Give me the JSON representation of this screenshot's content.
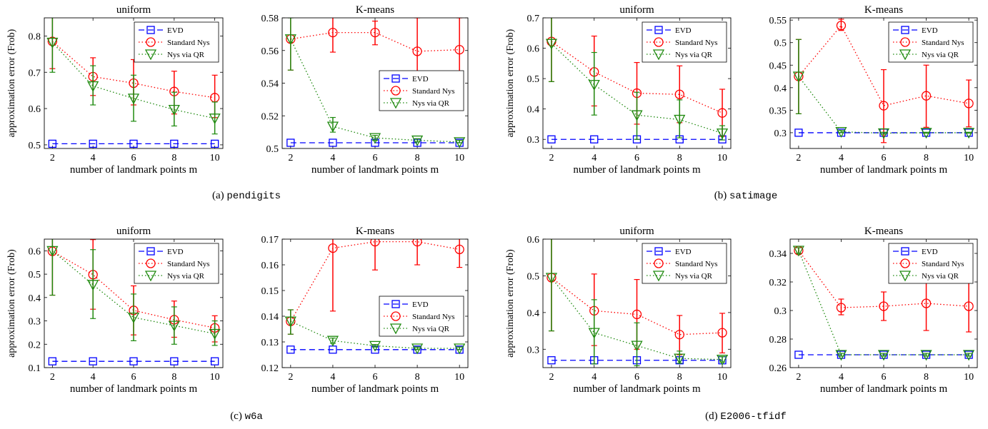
{
  "captions": [
    {
      "label": "(a)",
      "name": "pendigits"
    },
    {
      "label": "(b)",
      "name": "satimage"
    },
    {
      "label": "(c)",
      "name": "w6a"
    },
    {
      "label": "(d)",
      "name": "E2006-tfidf"
    }
  ],
  "legend_labels": [
    "EVD",
    "Standard Nys",
    "Nys via QR"
  ],
  "colors": {
    "evd": "#0000ff",
    "standard": "#ff0000",
    "qr": "#1f8a0f"
  },
  "chart_data": [
    {
      "id": "pendigits-uniform",
      "type": "line",
      "title": "uniform",
      "xlabel": "number of landmark points m",
      "ylabel": "approximation error (Frob)",
      "x": [
        2,
        4,
        6,
        8,
        10
      ],
      "xlim": [
        1.6,
        10.4
      ],
      "ylim": [
        0.49,
        0.85
      ],
      "xticks": [
        2,
        4,
        6,
        8,
        10
      ],
      "yticks": [
        0.5,
        0.6,
        0.7,
        0.8
      ],
      "ytick_labels": [
        "0.5",
        "0.6",
        "0.7",
        "0.8"
      ],
      "legend": "top-right",
      "series": [
        {
          "name": "EVD",
          "values": [
            0.503,
            0.503,
            0.503,
            0.503,
            0.503
          ]
        },
        {
          "name": "Standard Nys",
          "values": [
            0.785,
            0.688,
            0.67,
            0.647,
            0.63
          ],
          "err_low": [
            0.71,
            0.636,
            0.61,
            0.585,
            0.575
          ],
          "err_high": [
            0.86,
            0.74,
            0.735,
            0.703,
            0.692
          ]
        },
        {
          "name": "Nys via QR",
          "values": [
            0.782,
            0.662,
            0.628,
            0.597,
            0.573
          ],
          "err_low": [
            0.7,
            0.61,
            0.565,
            0.552,
            0.53
          ],
          "err_high": [
            0.86,
            0.718,
            0.692,
            0.645,
            0.618
          ]
        }
      ]
    },
    {
      "id": "pendigits-kmeans",
      "type": "line",
      "title": "K-means",
      "xlabel": "number of landmark points m",
      "ylabel": "",
      "x": [
        2,
        4,
        6,
        8,
        10
      ],
      "xlim": [
        1.6,
        10.4
      ],
      "ylim": [
        0.5,
        0.58
      ],
      "xticks": [
        2,
        4,
        6,
        8,
        10
      ],
      "yticks": [
        0.5,
        0.52,
        0.54,
        0.56,
        0.58
      ],
      "ytick_labels": [
        "0.5",
        "0.52",
        "0.54",
        "0.56",
        "0.58"
      ],
      "legend": "center-right",
      "series": [
        {
          "name": "EVD",
          "values": [
            0.5035,
            0.5035,
            0.5035,
            0.5035,
            0.5035
          ]
        },
        {
          "name": "Standard Nys",
          "values": [
            0.567,
            0.571,
            0.571,
            0.5595,
            0.5605
          ],
          "err_low": [
            0.548,
            0.559,
            0.5635,
            0.54,
            0.538
          ],
          "err_high": [
            0.59,
            0.582,
            0.578,
            0.58,
            0.58
          ]
        },
        {
          "name": "Nys via QR",
          "values": [
            0.567,
            0.5135,
            0.5065,
            0.505,
            0.504
          ],
          "err_low": [
            0.548,
            0.51,
            0.505,
            0.504,
            0.5035
          ],
          "err_high": [
            0.58,
            0.519,
            0.508,
            0.506,
            0.505
          ]
        }
      ]
    },
    {
      "id": "satimage-uniform",
      "type": "line",
      "title": "uniform",
      "xlabel": "number of landmark points m",
      "ylabel": "approximation error (Frob)",
      "x": [
        2,
        4,
        6,
        8,
        10
      ],
      "xlim": [
        1.6,
        10.4
      ],
      "ylim": [
        0.27,
        0.7
      ],
      "xticks": [
        2,
        4,
        6,
        8,
        10
      ],
      "yticks": [
        0.3,
        0.4,
        0.5,
        0.6,
        0.7
      ],
      "ytick_labels": [
        "0.3",
        "0.4",
        "0.5",
        "0.6",
        "0.7"
      ],
      "legend": "top-right",
      "series": [
        {
          "name": "EVD",
          "values": [
            0.3,
            0.3,
            0.3,
            0.3,
            0.3
          ]
        },
        {
          "name": "Standard Nys",
          "values": [
            0.622,
            0.522,
            0.452,
            0.448,
            0.387
          ],
          "err_low": [
            0.49,
            0.41,
            0.35,
            0.355,
            0.31
          ],
          "err_high": [
            0.75,
            0.64,
            0.553,
            0.542,
            0.465
          ]
        },
        {
          "name": "Nys via QR",
          "values": [
            0.615,
            0.48,
            0.38,
            0.365,
            0.32
          ],
          "err_low": [
            0.49,
            0.38,
            0.3,
            0.305,
            0.298
          ],
          "err_high": [
            0.75,
            0.586,
            0.455,
            0.43,
            0.345
          ]
        }
      ]
    },
    {
      "id": "satimage-kmeans",
      "type": "line",
      "title": "K-means",
      "xlabel": "number of landmark points m",
      "ylabel": "",
      "x": [
        2,
        4,
        6,
        8,
        10
      ],
      "xlim": [
        1.6,
        10.4
      ],
      "ylim": [
        0.265,
        0.555
      ],
      "xticks": [
        2,
        4,
        6,
        8,
        10
      ],
      "yticks": [
        0.3,
        0.35,
        0.4,
        0.45,
        0.5,
        0.55
      ],
      "ytick_labels": [
        "0.3",
        "0.35",
        "0.4",
        "0.45",
        "0.5",
        "0.55"
      ],
      "legend": "top-right",
      "series": [
        {
          "name": "EVD",
          "values": [
            0.3,
            0.3,
            0.3,
            0.3,
            0.3
          ]
        },
        {
          "name": "Standard Nys",
          "values": [
            0.425,
            0.538,
            0.36,
            0.382,
            0.365
          ],
          "err_low": [
            0.342,
            0.527,
            0.278,
            0.312,
            0.313
          ],
          "err_high": [
            0.507,
            0.552,
            0.44,
            0.45,
            0.417
          ]
        },
        {
          "name": "Nys via QR",
          "values": [
            0.425,
            0.302,
            0.299,
            0.3,
            0.3
          ],
          "err_low": [
            0.342,
            0.3,
            0.297,
            0.299,
            0.299
          ],
          "err_high": [
            0.507,
            0.305,
            0.301,
            0.301,
            0.301
          ]
        }
      ]
    },
    {
      "id": "w6a-uniform",
      "type": "line",
      "title": "uniform",
      "xlabel": "number of landmark points m",
      "ylabel": "approximation error (Frob)",
      "x": [
        2,
        4,
        6,
        8,
        10
      ],
      "xlim": [
        1.6,
        10.4
      ],
      "ylim": [
        0.1,
        0.65
      ],
      "xticks": [
        2,
        4,
        6,
        8,
        10
      ],
      "yticks": [
        0.1,
        0.2,
        0.3,
        0.4,
        0.5,
        0.6
      ],
      "ytick_labels": [
        "0.1",
        "0.2",
        "0.3",
        "0.4",
        "0.5",
        "0.6"
      ],
      "legend": "top-right",
      "series": [
        {
          "name": "EVD",
          "values": [
            0.127,
            0.127,
            0.127,
            0.127,
            0.127
          ]
        },
        {
          "name": "Standard Nys",
          "values": [
            0.598,
            0.498,
            0.345,
            0.305,
            0.27
          ],
          "err_low": [
            0.41,
            0.35,
            0.24,
            0.23,
            0.21
          ],
          "err_high": [
            0.78,
            0.648,
            0.45,
            0.385,
            0.322
          ]
        },
        {
          "name": "Nys via QR",
          "values": [
            0.6,
            0.455,
            0.315,
            0.28,
            0.245
          ],
          "err_low": [
            0.41,
            0.31,
            0.215,
            0.2,
            0.195
          ],
          "err_high": [
            0.78,
            0.605,
            0.415,
            0.36,
            0.3
          ]
        }
      ]
    },
    {
      "id": "w6a-kmeans",
      "type": "line",
      "title": "K-means",
      "xlabel": "number of landmark points m",
      "ylabel": "",
      "x": [
        2,
        4,
        6,
        8,
        10
      ],
      "xlim": [
        1.6,
        10.4
      ],
      "ylim": [
        0.12,
        0.17
      ],
      "xticks": [
        2,
        4,
        6,
        8,
        10
      ],
      "yticks": [
        0.12,
        0.13,
        0.14,
        0.15,
        0.16,
        0.17
      ],
      "ytick_labels": [
        "0.12",
        "0.13",
        "0.14",
        "0.15",
        "0.16",
        "0.17"
      ],
      "legend": "bottom-right",
      "series": [
        {
          "name": "EVD",
          "values": [
            0.127,
            0.127,
            0.127,
            0.127,
            0.127
          ]
        },
        {
          "name": "Standard Nys",
          "values": [
            0.138,
            0.1665,
            0.169,
            0.169,
            0.166
          ],
          "err_low": [
            0.133,
            0.142,
            0.158,
            0.16,
            0.159
          ],
          "err_high": [
            0.1425,
            0.175,
            0.18,
            0.178,
            0.173
          ]
        },
        {
          "name": "Nys via QR",
          "values": [
            0.138,
            0.1305,
            0.1285,
            0.1275,
            0.1275
          ],
          "err_low": [
            0.133,
            0.1295,
            0.128,
            0.127,
            0.127
          ],
          "err_high": [
            0.1425,
            0.1315,
            0.129,
            0.128,
            0.128
          ]
        }
      ]
    },
    {
      "id": "e2006-uniform",
      "type": "line",
      "title": "uniform",
      "xlabel": "number of landmark points m",
      "ylabel": "approximation error (Frob)",
      "x": [
        2,
        4,
        6,
        8,
        10
      ],
      "xlim": [
        1.6,
        10.4
      ],
      "ylim": [
        0.25,
        0.6
      ],
      "xticks": [
        2,
        4,
        6,
        8,
        10
      ],
      "yticks": [
        0.3,
        0.4,
        0.5,
        0.6
      ],
      "ytick_labels": [
        "0.3",
        "0.4",
        "0.5",
        "0.6"
      ],
      "legend": "top-right",
      "series": [
        {
          "name": "EVD",
          "values": [
            0.27,
            0.27,
            0.27,
            0.27,
            0.27
          ]
        },
        {
          "name": "Standard Nys",
          "values": [
            0.495,
            0.405,
            0.395,
            0.34,
            0.345
          ],
          "err_low": [
            0.35,
            0.31,
            0.3,
            0.285,
            0.29
          ],
          "err_high": [
            0.64,
            0.505,
            0.49,
            0.392,
            0.398
          ]
        },
        {
          "name": "Nys via QR",
          "values": [
            0.495,
            0.345,
            0.31,
            0.275,
            0.272
          ],
          "err_low": [
            0.35,
            0.26,
            0.255,
            0.262,
            0.265
          ],
          "err_high": [
            0.64,
            0.435,
            0.372,
            0.295,
            0.28
          ]
        }
      ]
    },
    {
      "id": "e2006-kmeans",
      "type": "line",
      "title": "K-means",
      "xlabel": "number of landmark points m",
      "ylabel": "",
      "x": [
        2,
        4,
        6,
        8,
        10
      ],
      "xlim": [
        1.6,
        10.4
      ],
      "ylim": [
        0.26,
        0.35
      ],
      "xticks": [
        2,
        4,
        6,
        8,
        10
      ],
      "yticks": [
        0.26,
        0.28,
        0.3,
        0.32,
        0.34
      ],
      "ytick_labels": [
        "0.26",
        "0.28",
        "0.3",
        "0.32",
        "0.34"
      ],
      "legend": "top-right",
      "series": [
        {
          "name": "EVD",
          "values": [
            0.269,
            0.269,
            0.269,
            0.269,
            0.269
          ]
        },
        {
          "name": "Standard Nys",
          "values": [
            0.342,
            0.302,
            0.303,
            0.305,
            0.303
          ],
          "err_low": [
            0.34,
            0.297,
            0.293,
            0.286,
            0.285
          ],
          "err_high": [
            0.344,
            0.308,
            0.313,
            0.325,
            0.321
          ]
        },
        {
          "name": "Nys via QR",
          "values": [
            0.342,
            0.269,
            0.269,
            0.269,
            0.269
          ],
          "err_low": [
            0.34,
            0.268,
            0.268,
            0.268,
            0.268
          ],
          "err_high": [
            0.344,
            0.27,
            0.27,
            0.27,
            0.27
          ]
        }
      ]
    }
  ]
}
